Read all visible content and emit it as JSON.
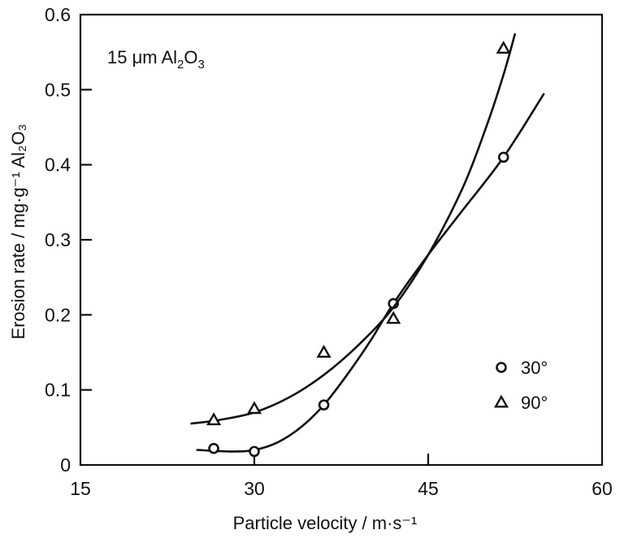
{
  "chart_data": {
    "type": "scatter",
    "xlabel": "Particle velocity / m·s⁻¹",
    "ylabel": "Erosion rate / mg·g⁻¹ Al₂O₃",
    "x_ticks": [
      "15",
      "30",
      "45",
      "60"
    ],
    "y_ticks": [
      "0",
      "0.1",
      "0.2",
      "0.3",
      "0.4",
      "0.5",
      "0.6"
    ],
    "xlim": [
      15,
      60
    ],
    "ylim": [
      0,
      0.6
    ],
    "grid": false,
    "annotation": {
      "text_parts": [
        "15 μm Al",
        "2",
        "O",
        "3"
      ]
    },
    "legend_position": "right",
    "series": [
      {
        "name": "30°",
        "marker": "circle",
        "points": [
          {
            "x": 26.5,
            "y": 0.022
          },
          {
            "x": 30.0,
            "y": 0.018
          },
          {
            "x": 36.0,
            "y": 0.08
          },
          {
            "x": 42.0,
            "y": 0.215
          },
          {
            "x": 51.5,
            "y": 0.41
          }
        ],
        "fit": [
          {
            "x": 25.0,
            "y": 0.02
          },
          {
            "x": 28.0,
            "y": 0.018
          },
          {
            "x": 30.0,
            "y": 0.02
          },
          {
            "x": 32.0,
            "y": 0.03
          },
          {
            "x": 34.0,
            "y": 0.05
          },
          {
            "x": 36.0,
            "y": 0.08
          },
          {
            "x": 38.0,
            "y": 0.12
          },
          {
            "x": 40.0,
            "y": 0.165
          },
          {
            "x": 42.0,
            "y": 0.215
          },
          {
            "x": 45.0,
            "y": 0.28
          },
          {
            "x": 48.0,
            "y": 0.34
          },
          {
            "x": 51.5,
            "y": 0.41
          },
          {
            "x": 55.0,
            "y": 0.495
          }
        ]
      },
      {
        "name": "90°",
        "marker": "triangle",
        "points": [
          {
            "x": 26.5,
            "y": 0.06
          },
          {
            "x": 30.0,
            "y": 0.075
          },
          {
            "x": 36.0,
            "y": 0.15
          },
          {
            "x": 42.0,
            "y": 0.195
          },
          {
            "x": 51.5,
            "y": 0.555
          }
        ],
        "fit": [
          {
            "x": 24.5,
            "y": 0.055
          },
          {
            "x": 27.0,
            "y": 0.06
          },
          {
            "x": 30.0,
            "y": 0.07
          },
          {
            "x": 33.0,
            "y": 0.09
          },
          {
            "x": 36.0,
            "y": 0.12
          },
          {
            "x": 39.0,
            "y": 0.16
          },
          {
            "x": 42.0,
            "y": 0.21
          },
          {
            "x": 45.0,
            "y": 0.28
          },
          {
            "x": 48.0,
            "y": 0.37
          },
          {
            "x": 50.0,
            "y": 0.45
          },
          {
            "x": 51.5,
            "y": 0.52
          },
          {
            "x": 52.5,
            "y": 0.575
          }
        ]
      }
    ]
  }
}
